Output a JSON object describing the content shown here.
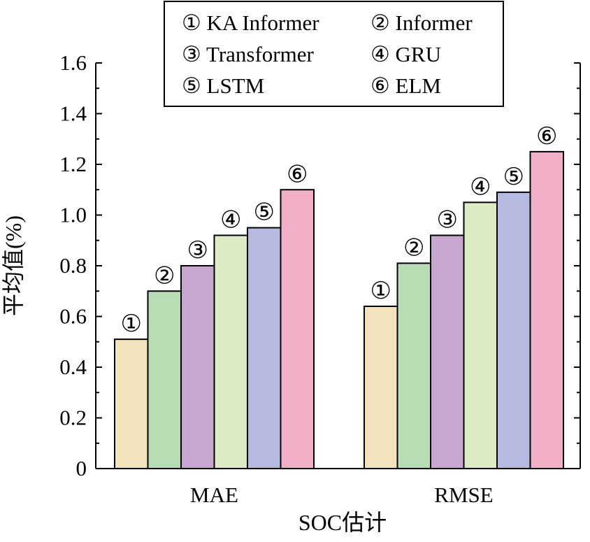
{
  "chart_data": {
    "type": "bar",
    "title": "",
    "xlabel": "SOC估计",
    "ylabel": "平均值(%)",
    "categories": [
      "MAE",
      "RMSE"
    ],
    "ylim": [
      0,
      1.6
    ],
    "yticks": [
      "0",
      "0.2",
      "0.4",
      "0.6",
      "0.8",
      "1.0",
      "1.2",
      "1.4",
      "1.6"
    ],
    "grid": false,
    "legend_position": "top-center",
    "series": [
      {
        "name": "KA Informer",
        "marker": "①",
        "color": "#F2E3BC",
        "values": [
          0.51,
          0.64
        ]
      },
      {
        "name": "Informer",
        "marker": "②",
        "color": "#B8DDB4",
        "values": [
          0.7,
          0.81
        ]
      },
      {
        "name": "Transformer",
        "marker": "③",
        "color": "#C7A7CF",
        "values": [
          0.8,
          0.92
        ]
      },
      {
        "name": "GRU",
        "marker": "④",
        "color": "#DDEBC4",
        "values": [
          0.92,
          1.05
        ]
      },
      {
        "name": "LSTM",
        "marker": "⑤",
        "color": "#B7BAE0",
        "values": [
          0.95,
          1.09
        ]
      },
      {
        "name": "ELM",
        "marker": "⑥",
        "color": "#F2AFC8",
        "values": [
          1.1,
          1.25
        ]
      }
    ]
  }
}
